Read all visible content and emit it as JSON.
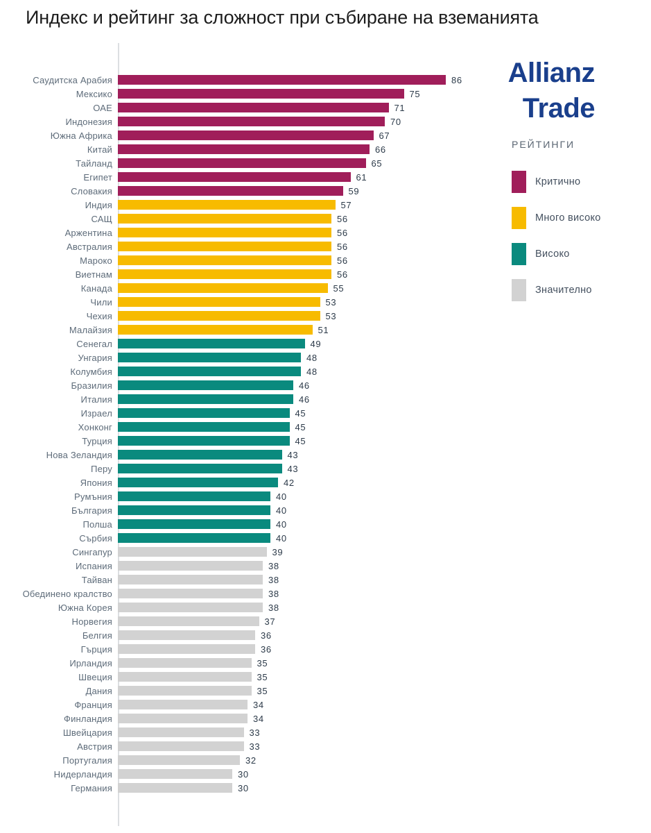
{
  "title": "Индекс и рейтинг за сложност при събиране на вземанията",
  "logo": {
    "line1": "Allianz",
    "line2": "Trade",
    "color": "#1a3f8c"
  },
  "legend": {
    "header": "РЕЙТИНГИ",
    "items": [
      {
        "key": "critical",
        "label": "Критично",
        "color": "#a01e5a"
      },
      {
        "key": "very_high",
        "label": "Много високо",
        "color": "#f7bb00"
      },
      {
        "key": "high",
        "label": "Високо",
        "color": "#0a8a7e"
      },
      {
        "key": "significant",
        "label": "Значително",
        "color": "#d2d2d2"
      }
    ]
  },
  "chart_data": {
    "type": "bar",
    "orientation": "horizontal",
    "title": "Индекс и рейтинг за сложност при събиране на вземанията",
    "xlabel": "",
    "ylabel": "",
    "xlim": [
      0,
      90
    ],
    "grid": false,
    "legend_position": "right",
    "bars": [
      {
        "label": "Саудитска Арабия",
        "value": 86,
        "rating": "critical"
      },
      {
        "label": "Мексико",
        "value": 75,
        "rating": "critical"
      },
      {
        "label": "ОАЕ",
        "value": 71,
        "rating": "critical"
      },
      {
        "label": "Индонезия",
        "value": 70,
        "rating": "critical"
      },
      {
        "label": "Южна Африка",
        "value": 67,
        "rating": "critical"
      },
      {
        "label": "Китай",
        "value": 66,
        "rating": "critical"
      },
      {
        "label": "Тайланд",
        "value": 65,
        "rating": "critical"
      },
      {
        "label": "Египет",
        "value": 61,
        "rating": "critical"
      },
      {
        "label": "Словакия",
        "value": 59,
        "rating": "critical"
      },
      {
        "label": "Индия",
        "value": 57,
        "rating": "very_high"
      },
      {
        "label": "САЩ",
        "value": 56,
        "rating": "very_high"
      },
      {
        "label": "Аржентина",
        "value": 56,
        "rating": "very_high"
      },
      {
        "label": "Австралия",
        "value": 56,
        "rating": "very_high"
      },
      {
        "label": "Мароко",
        "value": 56,
        "rating": "very_high"
      },
      {
        "label": "Виетнам",
        "value": 56,
        "rating": "very_high"
      },
      {
        "label": "Канада",
        "value": 55,
        "rating": "very_high"
      },
      {
        "label": "Чили",
        "value": 53,
        "rating": "very_high"
      },
      {
        "label": "Чехия",
        "value": 53,
        "rating": "very_high"
      },
      {
        "label": "Малайзия",
        "value": 51,
        "rating": "very_high"
      },
      {
        "label": "Сенегал",
        "value": 49,
        "rating": "high"
      },
      {
        "label": "Унгария",
        "value": 48,
        "rating": "high"
      },
      {
        "label": "Колумбия",
        "value": 48,
        "rating": "high"
      },
      {
        "label": "Бразилия",
        "value": 46,
        "rating": "high"
      },
      {
        "label": "Италия",
        "value": 46,
        "rating": "high"
      },
      {
        "label": "Израел",
        "value": 45,
        "rating": "high"
      },
      {
        "label": "Хонконг",
        "value": 45,
        "rating": "high"
      },
      {
        "label": "Турция",
        "value": 45,
        "rating": "high"
      },
      {
        "label": "Нова Зеландия",
        "value": 43,
        "rating": "high"
      },
      {
        "label": "Перу",
        "value": 43,
        "rating": "high"
      },
      {
        "label": "Япония",
        "value": 42,
        "rating": "high"
      },
      {
        "label": "Румъния",
        "value": 40,
        "rating": "high"
      },
      {
        "label": "България",
        "value": 40,
        "rating": "high"
      },
      {
        "label": "Полша",
        "value": 40,
        "rating": "high"
      },
      {
        "label": "Сърбия",
        "value": 40,
        "rating": "high"
      },
      {
        "label": "Сингапур",
        "value": 39,
        "rating": "significant"
      },
      {
        "label": "Испания",
        "value": 38,
        "rating": "significant"
      },
      {
        "label": "Тайван",
        "value": 38,
        "rating": "significant"
      },
      {
        "label": "Обединено кралство",
        "value": 38,
        "rating": "significant"
      },
      {
        "label": "Южна Корея",
        "value": 38,
        "rating": "significant"
      },
      {
        "label": "Норвегия",
        "value": 37,
        "rating": "significant"
      },
      {
        "label": "Белгия",
        "value": 36,
        "rating": "significant"
      },
      {
        "label": "Гърция",
        "value": 36,
        "rating": "significant"
      },
      {
        "label": "Ирландия",
        "value": 35,
        "rating": "significant"
      },
      {
        "label": "Швеция",
        "value": 35,
        "rating": "significant"
      },
      {
        "label": "Дания",
        "value": 35,
        "rating": "significant"
      },
      {
        "label": "Франция",
        "value": 34,
        "rating": "significant"
      },
      {
        "label": "Финландия",
        "value": 34,
        "rating": "significant"
      },
      {
        "label": "Швейцария",
        "value": 33,
        "rating": "significant"
      },
      {
        "label": "Австрия",
        "value": 33,
        "rating": "significant"
      },
      {
        "label": "Португалия",
        "value": 32,
        "rating": "significant"
      },
      {
        "label": "Нидерландия",
        "value": 30,
        "rating": "significant"
      },
      {
        "label": "Германия",
        "value": 30,
        "rating": "significant"
      }
    ]
  }
}
